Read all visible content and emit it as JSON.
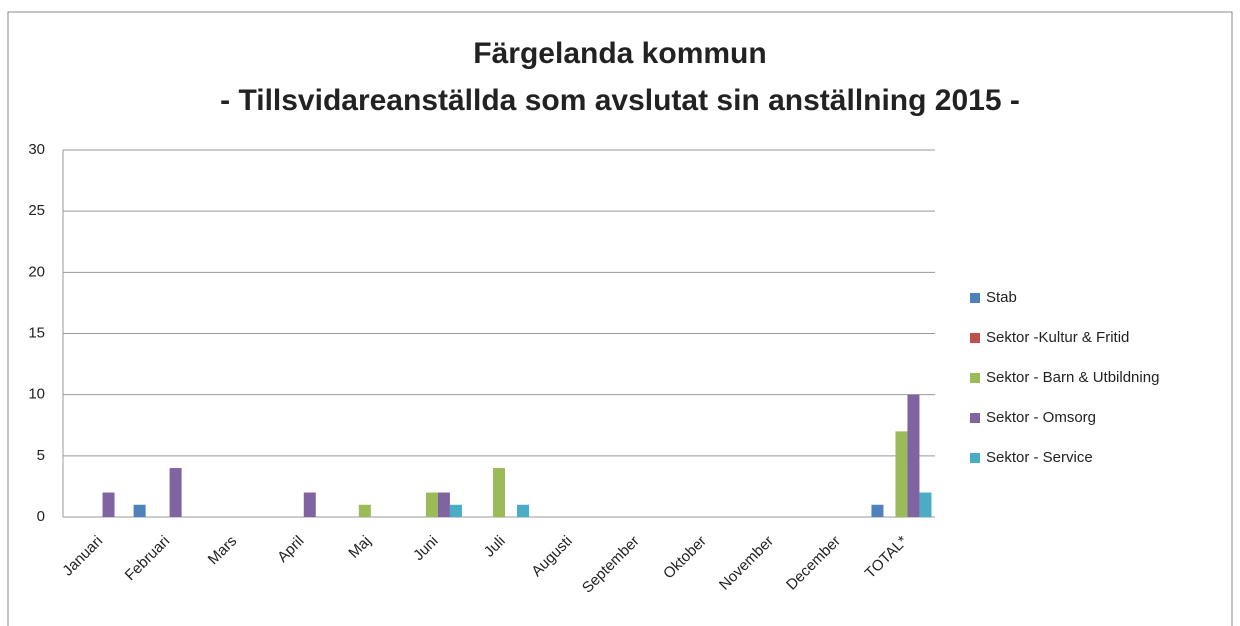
{
  "chart_data": {
    "type": "bar",
    "title": [
      "Färgelanda kommun",
      "- Tillsvidareanställda som avslutat sin anställning 2015 -"
    ],
    "categories": [
      "Januari",
      "Februari",
      "Mars",
      "April",
      "Maj",
      "Juni",
      "Juli",
      "Augusti",
      "September",
      "Oktober",
      "November",
      "December",
      "TOTAL*"
    ],
    "series": [
      {
        "name": "Stab",
        "color": "#4f81bd",
        "values": [
          0,
          1,
          0,
          0,
          0,
          0,
          0,
          0,
          0,
          0,
          0,
          0,
          1
        ]
      },
      {
        "name": "Sektor -Kultur & Fritid",
        "color": "#c0504d",
        "values": [
          0,
          0,
          0,
          0,
          0,
          0,
          0,
          0,
          0,
          0,
          0,
          0,
          0
        ]
      },
      {
        "name": "Sektor - Barn & Utbildning",
        "color": "#9bbb59",
        "values": [
          0,
          0,
          0,
          0,
          1,
          2,
          4,
          0,
          0,
          0,
          0,
          0,
          7
        ]
      },
      {
        "name": "Sektor - Omsorg",
        "color": "#8064a2",
        "values": [
          2,
          4,
          0,
          2,
          0,
          2,
          0,
          0,
          0,
          0,
          0,
          0,
          10
        ]
      },
      {
        "name": "Sektor - Service",
        "color": "#4bacc6",
        "values": [
          0,
          0,
          0,
          0,
          0,
          1,
          1,
          0,
          0,
          0,
          0,
          0,
          2
        ]
      }
    ],
    "ylim": [
      0,
      30
    ],
    "yticks": [
      0,
      5,
      10,
      15,
      20,
      25,
      30
    ],
    "grid": true,
    "legend": "right"
  }
}
